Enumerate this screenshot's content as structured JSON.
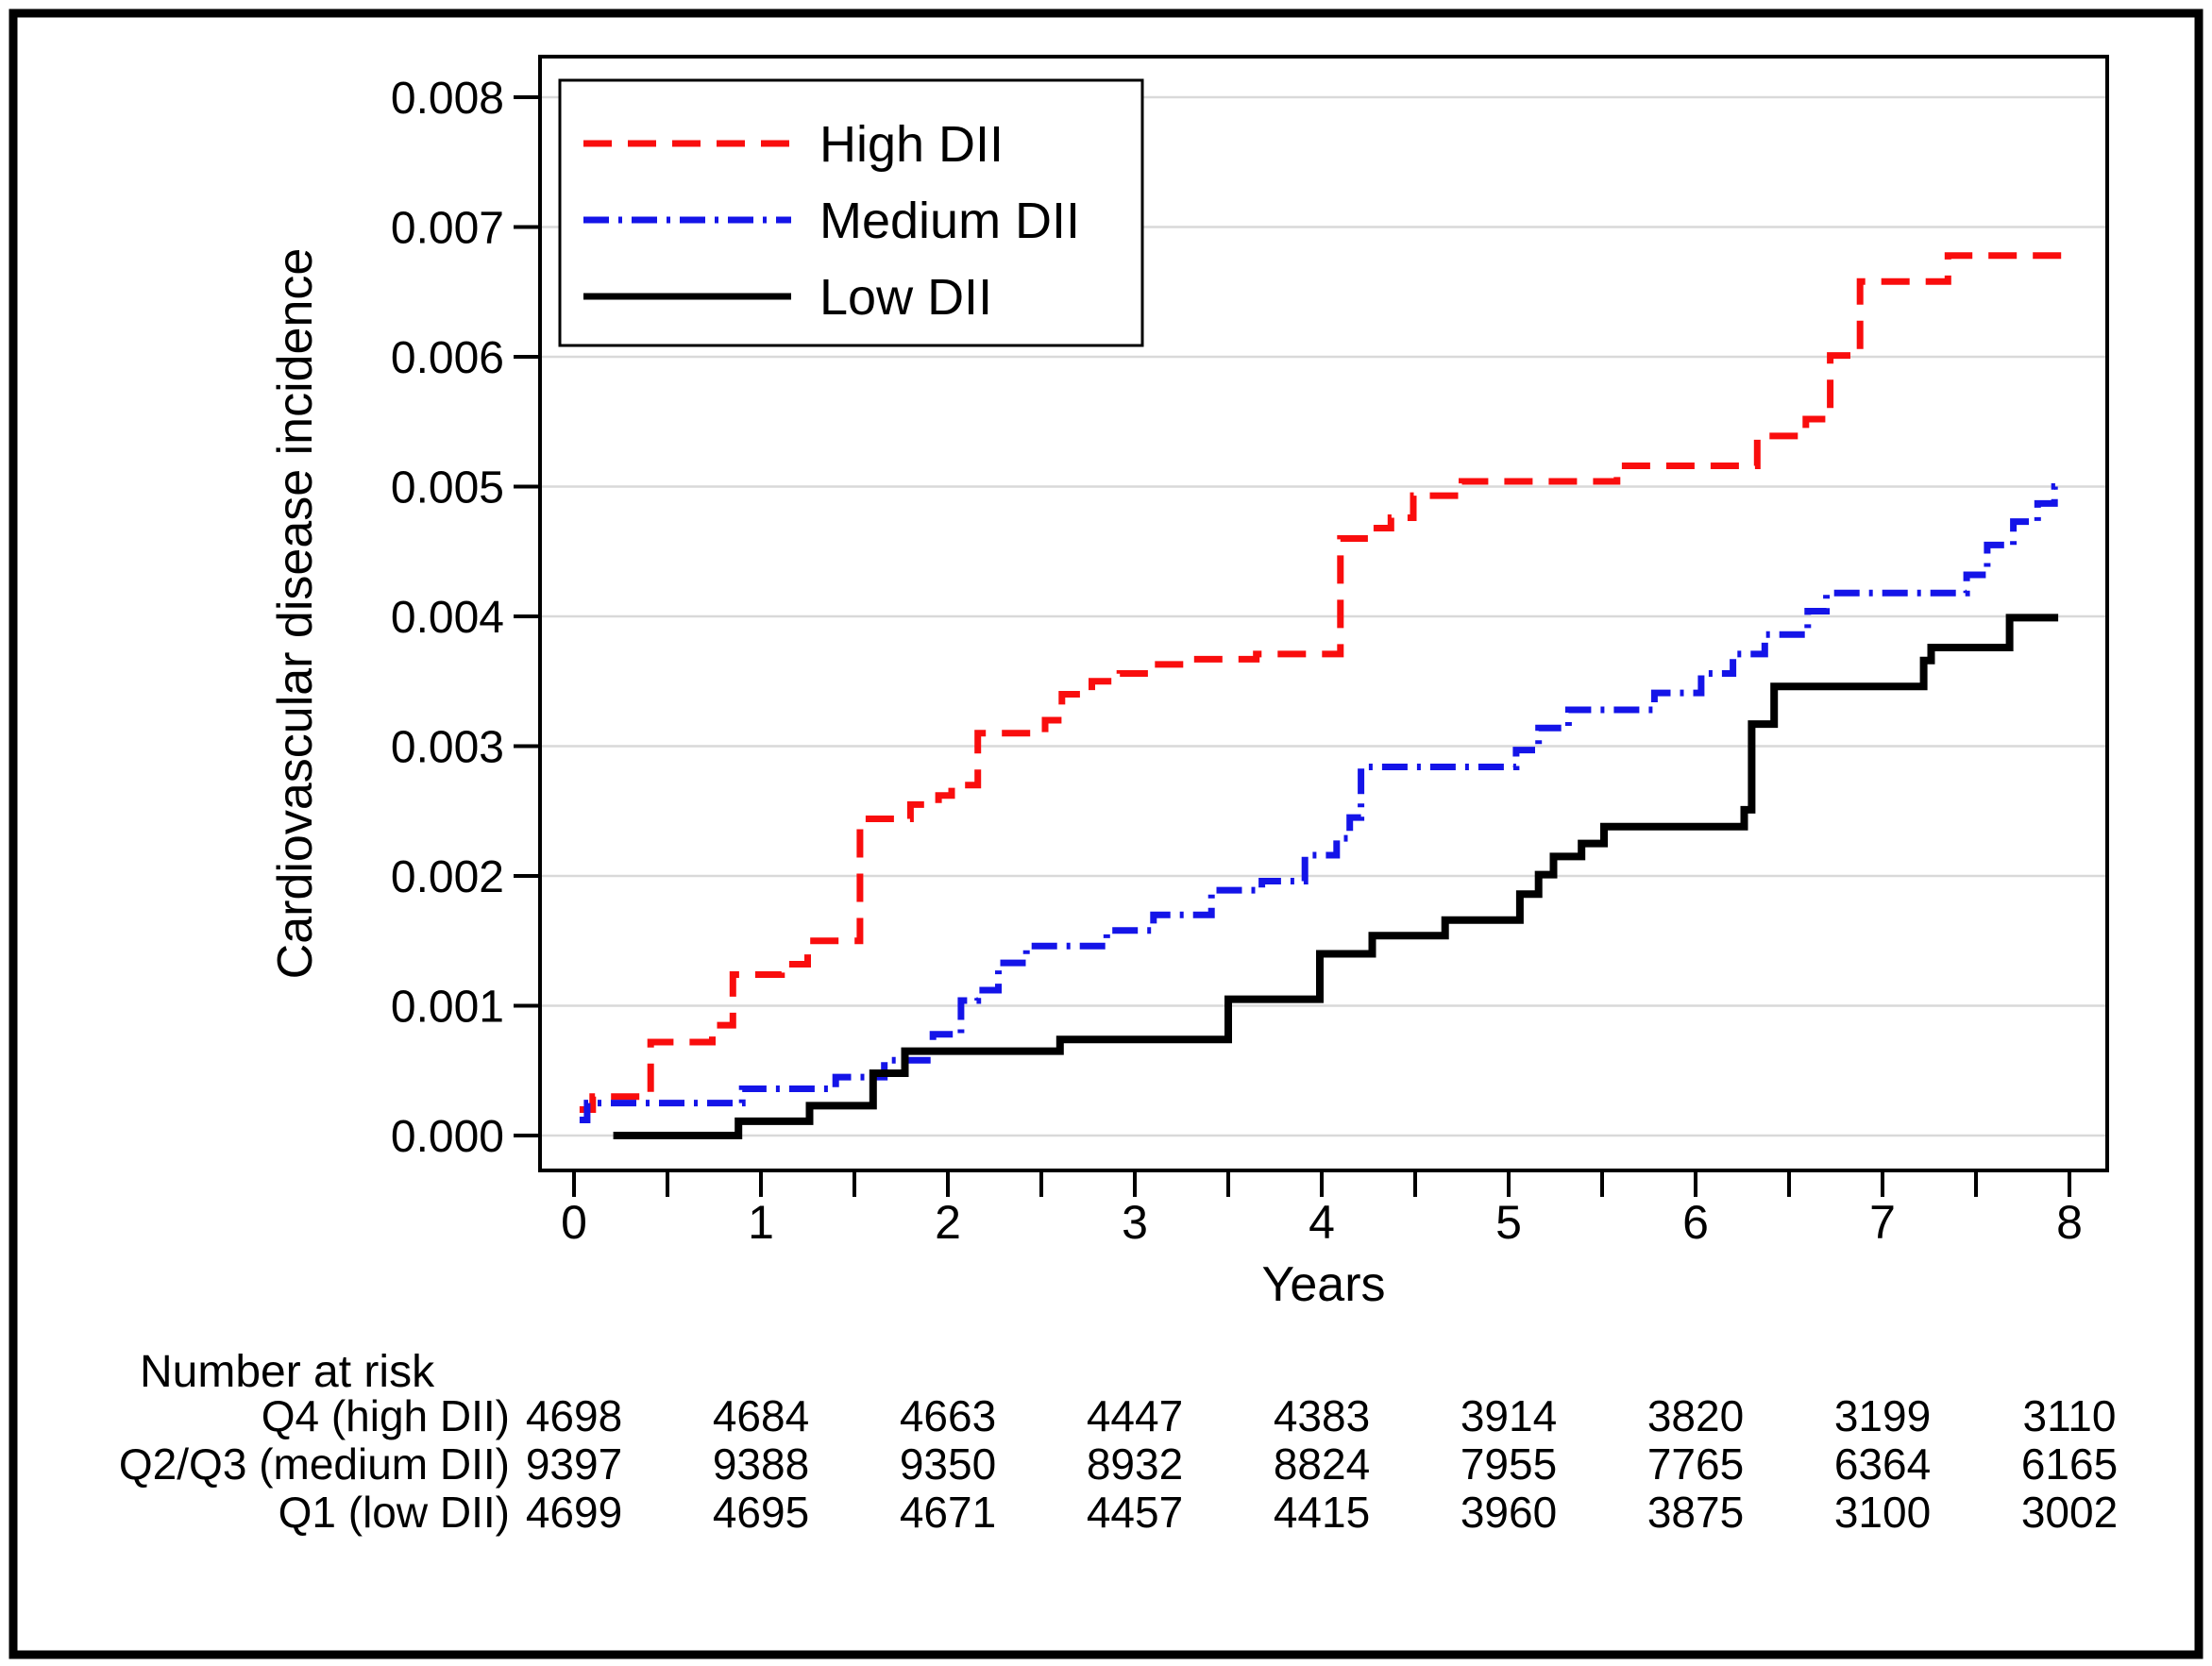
{
  "figure": {
    "background": "#ffffff",
    "border_color": "#000000"
  },
  "chart_data": {
    "type": "line",
    "subtype": "step-cumulative-incidence",
    "title": "",
    "xlabel": "Years",
    "ylabel": "Cardiovascular disease incidence",
    "xlim": [
      0,
      8
    ],
    "ylim": [
      0,
      0.008
    ],
    "grid": true,
    "grid_color": "#d9d9d9",
    "legend_position": "top-left",
    "x_ticks": [
      0,
      1,
      2,
      3,
      4,
      5,
      6,
      7,
      8
    ],
    "x_tick_labels": [
      "0",
      "1",
      "2",
      "3",
      "4",
      "5",
      "6",
      "7",
      "8"
    ],
    "x_minor_ticks": [
      0.5,
      1.5,
      2.5,
      3.5,
      4.5,
      5.5,
      6.5,
      7.5
    ],
    "y_ticks": [
      0,
      0.001,
      0.002,
      0.003,
      0.004,
      0.005,
      0.006,
      0.007,
      0.008
    ],
    "y_tick_labels": [
      "0.000",
      "0.001",
      "0.002",
      "0.003",
      "0.004",
      "0.005",
      "0.006",
      "0.007",
      "0.008"
    ],
    "series": [
      {
        "name": "High DII",
        "color": "#f90d0d",
        "style": "dashed",
        "steps": [
          [
            0.03,
            0.0002
          ],
          [
            0.1,
            0.0003
          ],
          [
            0.41,
            0.00072
          ],
          [
            0.74,
            0.00085
          ],
          [
            0.85,
            0.00124
          ],
          [
            1.11,
            0.00132
          ],
          [
            1.25,
            0.0015
          ],
          [
            1.53,
            0.00244
          ],
          [
            1.8,
            0.00255
          ],
          [
            1.95,
            0.00262
          ],
          [
            2.02,
            0.0027
          ],
          [
            2.16,
            0.0031
          ],
          [
            2.52,
            0.0032
          ],
          [
            2.61,
            0.0034
          ],
          [
            2.77,
            0.0035
          ],
          [
            2.92,
            0.00356
          ],
          [
            3.08,
            0.00363
          ],
          [
            3.3,
            0.00367
          ],
          [
            3.65,
            0.00371
          ],
          [
            4.1,
            0.0046
          ],
          [
            4.26,
            0.00468
          ],
          [
            4.37,
            0.00476
          ],
          [
            4.49,
            0.00493
          ],
          [
            4.75,
            0.00504
          ],
          [
            5.58,
            0.00516
          ],
          [
            6.33,
            0.00539
          ],
          [
            6.59,
            0.00552
          ],
          [
            6.72,
            0.00601
          ],
          [
            6.88,
            0.00658
          ],
          [
            7.35,
            0.00678
          ],
          [
            7.97,
            0.00678
          ]
        ]
      },
      {
        "name": "Medium DII",
        "color": "#1414e8",
        "style": "dashdot",
        "steps": [
          [
            0.03,
            0.00012
          ],
          [
            0.07,
            0.00025
          ],
          [
            0.9,
            0.00036
          ],
          [
            1.4,
            0.00045
          ],
          [
            1.66,
            0.00058
          ],
          [
            1.92,
            0.00078
          ],
          [
            2.07,
            0.00104
          ],
          [
            2.16,
            0.00112
          ],
          [
            2.27,
            0.00133
          ],
          [
            2.42,
            0.00146
          ],
          [
            2.85,
            0.00158
          ],
          [
            3.1,
            0.0017
          ],
          [
            3.41,
            0.00189
          ],
          [
            3.68,
            0.00196
          ],
          [
            3.91,
            0.00216
          ],
          [
            4.08,
            0.00229
          ],
          [
            4.15,
            0.00245
          ],
          [
            4.21,
            0.00284
          ],
          [
            5.04,
            0.00297
          ],
          [
            5.16,
            0.00314
          ],
          [
            5.32,
            0.00328
          ],
          [
            5.78,
            0.00341
          ],
          [
            6.03,
            0.00356
          ],
          [
            6.2,
            0.00371
          ],
          [
            6.37,
            0.00386
          ],
          [
            6.6,
            0.00404
          ],
          [
            6.7,
            0.00418
          ],
          [
            7.45,
            0.00432
          ],
          [
            7.56,
            0.00455
          ],
          [
            7.7,
            0.00473
          ],
          [
            7.83,
            0.00487
          ],
          [
            7.92,
            0.005
          ],
          [
            7.97,
            0.005
          ]
        ]
      },
      {
        "name": "Low DII",
        "color": "#000000",
        "style": "solid",
        "steps": [
          [
            0.21,
            0.0
          ],
          [
            0.88,
            0.00011
          ],
          [
            1.26,
            0.00023
          ],
          [
            1.6,
            0.00048
          ],
          [
            1.77,
            0.00065
          ],
          [
            2.6,
            0.00074
          ],
          [
            3.5,
            0.00105
          ],
          [
            3.99,
            0.0014
          ],
          [
            4.27,
            0.00154
          ],
          [
            4.66,
            0.00166
          ],
          [
            5.06,
            0.00186
          ],
          [
            5.16,
            0.00201
          ],
          [
            5.24,
            0.00215
          ],
          [
            5.39,
            0.00225
          ],
          [
            5.51,
            0.00238
          ],
          [
            6.26,
            0.00251
          ],
          [
            6.3,
            0.00317
          ],
          [
            6.42,
            0.00346
          ],
          [
            7.22,
            0.00366
          ],
          [
            7.26,
            0.00376
          ],
          [
            7.68,
            0.00399
          ],
          [
            7.94,
            0.00399
          ]
        ]
      }
    ],
    "risk_table": {
      "title": "Number at risk",
      "times": [
        0,
        1,
        2,
        3,
        4,
        5,
        6,
        7,
        8
      ],
      "rows": [
        {
          "label": "Q4 (high DII)",
          "color": "#f90d0d",
          "values": [
            "4698",
            "4684",
            "4663",
            "4447",
            "4383",
            "3914",
            "3820",
            "3199",
            "3110"
          ]
        },
        {
          "label": "Q2/Q3 (medium DII)",
          "color": "#1414e8",
          "values": [
            "9397",
            "9388",
            "9350",
            "8932",
            "8824",
            "7955",
            "7765",
            "6364",
            "6165"
          ]
        },
        {
          "label": "Q1 (low DII)",
          "color": "#000000",
          "values": [
            "4699",
            "4695",
            "4671",
            "4457",
            "4415",
            "3960",
            "3875",
            "3100",
            "3002"
          ]
        }
      ]
    }
  }
}
